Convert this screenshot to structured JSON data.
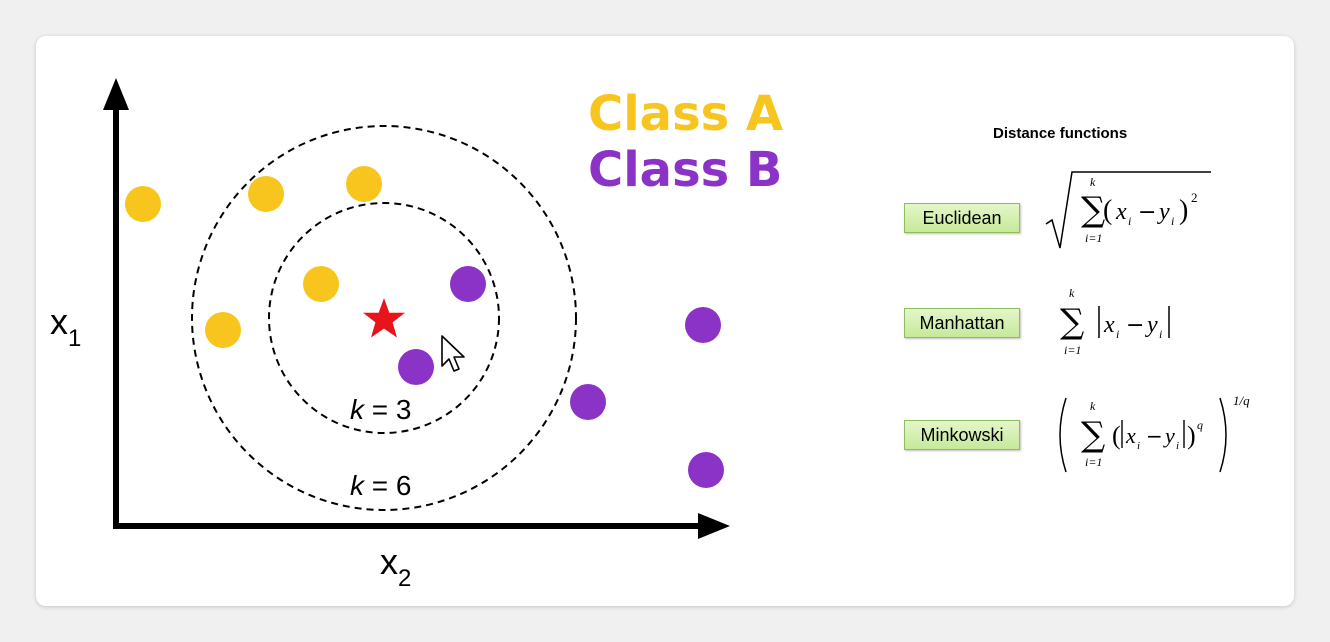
{
  "legend": {
    "class_a": "Class A",
    "class_b": "Class B",
    "class_a_color": "#f7c51e",
    "class_b_color": "#8b33c6"
  },
  "axes": {
    "x_main": "x",
    "x_sub": "2",
    "y_main": "x",
    "y_sub": "1"
  },
  "neighborhoods": {
    "k_inner_var": "k",
    "k_inner_rest": " = 3",
    "k_outer_var": "k",
    "k_outer_rest": " = 6"
  },
  "query_point": {
    "icon": "star-icon",
    "color": "#e8141c"
  },
  "distance": {
    "title": "Distance functions",
    "metrics": [
      {
        "label": "Euclidean"
      },
      {
        "label": "Manhattan"
      },
      {
        "label": "Minkowski"
      }
    ],
    "formula_text": {
      "sum_top": "k",
      "sum_bottom": "i=1",
      "x_i": "x",
      "y_i": "y",
      "sub_i": "i",
      "power_2": "2",
      "power_q": "q",
      "power_1q": "1/q"
    }
  }
}
